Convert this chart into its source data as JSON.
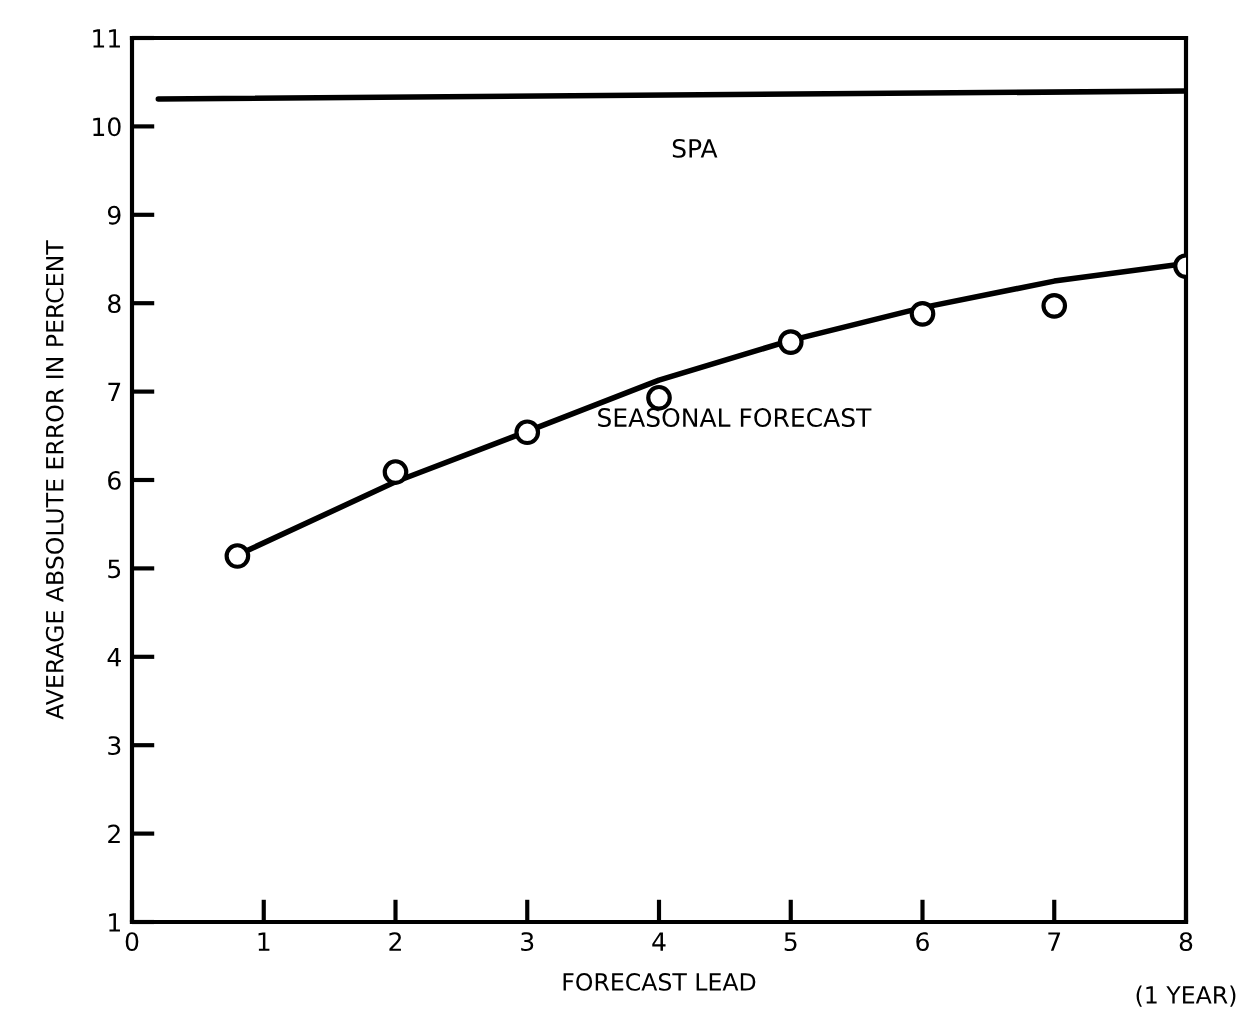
{
  "chart_data": {
    "type": "line",
    "xlabel": "FORECAST LEAD",
    "ylabel": "AVERAGE ABSOLUTE ERROR IN PERCENT",
    "xlim": [
      0,
      8
    ],
    "ylim": [
      1,
      11
    ],
    "xticks": [
      0,
      1,
      2,
      3,
      4,
      5,
      6,
      7,
      8
    ],
    "yticks": [
      1,
      2,
      3,
      4,
      5,
      6,
      7,
      8,
      9,
      10,
      11
    ],
    "grid": false,
    "legend": false,
    "annotations": [
      "(1 YEAR)"
    ],
    "series": [
      {
        "name": "SPA",
        "color": "#000000",
        "marker": "none",
        "x": [
          0.2,
          8
        ],
        "values": [
          10.31,
          10.4
        ]
      },
      {
        "name": "SEASONAL FORECAST",
        "color": "#000000",
        "marker": "none",
        "x": [
          0.8,
          2,
          3,
          4,
          5,
          6,
          7,
          8
        ],
        "values": [
          5.15,
          5.98,
          6.55,
          7.13,
          7.58,
          7.95,
          8.25,
          8.45
        ]
      },
      {
        "type": "scatter",
        "color": "#000000",
        "marker": "circle",
        "x": [
          0.8,
          2,
          3,
          4,
          5,
          6,
          7,
          8
        ],
        "values": [
          5.14,
          6.09,
          6.54,
          6.93,
          7.56,
          7.88,
          7.97,
          8.42
        ]
      }
    ]
  }
}
